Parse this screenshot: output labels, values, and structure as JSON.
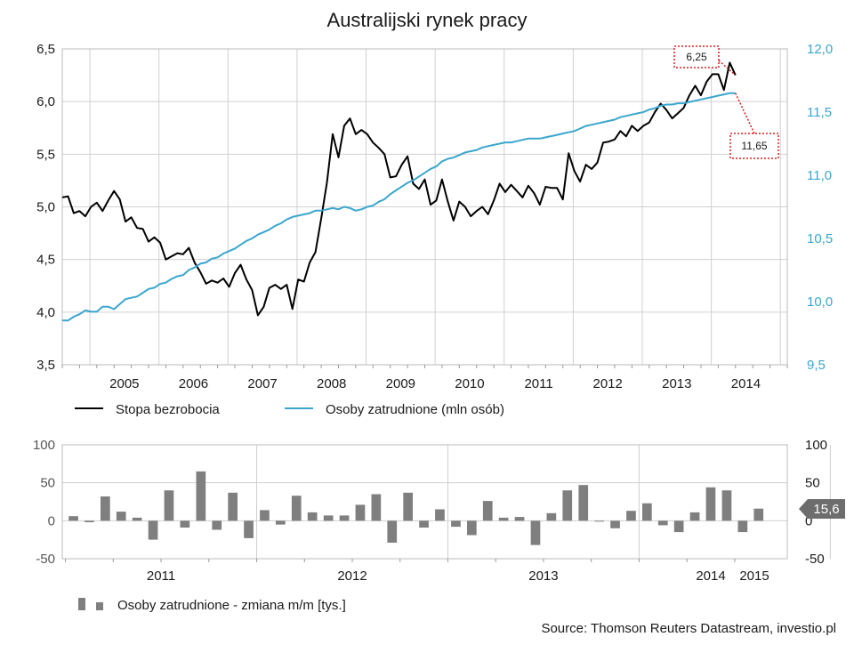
{
  "title": "Australijski rynek pracy",
  "source": "Source: Thomson Reuters Datastream, investio.pl",
  "colors": {
    "unemployment": "#000000",
    "employment": "#3aa6cf",
    "bars": "#7f7f7f",
    "grid": "#d0d0d0"
  },
  "chart_data": [
    {
      "type": "line",
      "x_range": [
        2004.6,
        2015.1
      ],
      "year_labels": [
        "2005",
        "2006",
        "2007",
        "2008",
        "2009",
        "2010",
        "2011",
        "2012",
        "2013",
        "2014"
      ],
      "y_left": {
        "ylim": [
          3.5,
          6.5
        ],
        "ticks": [
          "3,5",
          "4,0",
          "4,5",
          "5,0",
          "5,5",
          "6,0",
          "6,5"
        ]
      },
      "y_right": {
        "ylim": [
          9.5,
          12.0
        ],
        "ticks": [
          "9,5",
          "10,0",
          "10,5",
          "11,0",
          "11,5",
          "12,0"
        ]
      },
      "grid": true,
      "series": [
        {
          "name": "Stopa bezrobocia",
          "axis": "left",
          "x_start": 2004.6,
          "x_step": 0.08333,
          "values": [
            5.09,
            5.1,
            4.94,
            4.96,
            4.91,
            5.0,
            5.04,
            4.96,
            5.06,
            5.15,
            5.07,
            4.86,
            4.9,
            4.8,
            4.79,
            4.67,
            4.71,
            4.66,
            4.5,
            4.53,
            4.56,
            4.55,
            4.61,
            4.47,
            4.38,
            4.27,
            4.3,
            4.28,
            4.32,
            4.24,
            4.37,
            4.45,
            4.31,
            4.21,
            3.97,
            4.05,
            4.23,
            4.26,
            4.22,
            4.26,
            4.03,
            4.31,
            4.29,
            4.47,
            4.57,
            4.89,
            5.23,
            5.69,
            5.47,
            5.77,
            5.84,
            5.69,
            5.73,
            5.69,
            5.61,
            5.56,
            5.5,
            5.28,
            5.29,
            5.4,
            5.48,
            5.22,
            5.17,
            5.26,
            5.02,
            5.06,
            5.26,
            5.05,
            4.87,
            5.05,
            5.0,
            4.91,
            4.96,
            5.0,
            4.93,
            5.06,
            5.22,
            5.14,
            5.21,
            5.15,
            5.09,
            5.2,
            5.13,
            5.02,
            5.19,
            5.18,
            5.18,
            5.07,
            5.51,
            5.34,
            5.24,
            5.4,
            5.36,
            5.42,
            5.61,
            5.62,
            5.64,
            5.72,
            5.67,
            5.77,
            5.72,
            5.77,
            5.8,
            5.9,
            5.98,
            5.92,
            5.84,
            5.89,
            5.94,
            6.06,
            6.15,
            6.06,
            6.19,
            6.26,
            6.26,
            6.11,
            6.37,
            6.25
          ]
        },
        {
          "name": "Osoby zatrudnione (mln osób)",
          "axis": "right",
          "x_start": 2004.6,
          "x_step": 0.08333,
          "values": [
            9.85,
            9.85,
            9.88,
            9.9,
            9.93,
            9.92,
            9.92,
            9.96,
            9.96,
            9.94,
            9.98,
            10.02,
            10.03,
            10.04,
            10.07,
            10.1,
            10.11,
            10.14,
            10.15,
            10.18,
            10.2,
            10.21,
            10.25,
            10.27,
            10.3,
            10.31,
            10.34,
            10.35,
            10.38,
            10.4,
            10.42,
            10.45,
            10.48,
            10.5,
            10.53,
            10.55,
            10.57,
            10.6,
            10.62,
            10.65,
            10.67,
            10.68,
            10.69,
            10.7,
            10.72,
            10.72,
            10.73,
            10.74,
            10.73,
            10.75,
            10.74,
            10.72,
            10.73,
            10.75,
            10.76,
            10.79,
            10.81,
            10.85,
            10.88,
            10.91,
            10.94,
            10.96,
            10.99,
            11.02,
            11.05,
            11.07,
            11.11,
            11.13,
            11.14,
            11.16,
            11.18,
            11.19,
            11.2,
            11.22,
            11.23,
            11.24,
            11.25,
            11.26,
            11.26,
            11.27,
            11.28,
            11.29,
            11.29,
            11.29,
            11.3,
            11.31,
            11.32,
            11.33,
            11.34,
            11.35,
            11.37,
            11.39,
            11.4,
            11.41,
            11.42,
            11.43,
            11.44,
            11.46,
            11.47,
            11.48,
            11.49,
            11.5,
            11.52,
            11.53,
            11.55,
            11.56,
            11.56,
            11.57,
            11.57,
            11.58,
            11.59,
            11.6,
            11.61,
            11.62,
            11.63,
            11.64,
            11.65,
            11.65
          ]
        }
      ],
      "annotations": [
        {
          "text": "6,25",
          "series": "Stopa bezrobocia",
          "value": 6.25
        },
        {
          "text": "11,65",
          "series": "Osoby zatrudnione (mln osób)",
          "value": 11.65
        }
      ],
      "legend": {
        "placement": "bottom-left",
        "items": [
          "Stopa bezrobocia",
          "Osoby zatrudnione (mln osób)"
        ]
      }
    },
    {
      "type": "bar",
      "year_labels": [
        "2011",
        "2012",
        "2013",
        "2014",
        "2015"
      ],
      "year_month_index": [
        0,
        12,
        24,
        36,
        48
      ],
      "ylim": [
        -50,
        100
      ],
      "y_left_ticks": [
        "-50",
        "0",
        "50",
        "100"
      ],
      "y_right_ticks": [
        "-50",
        "0",
        "50",
        "100"
      ],
      "grid": true,
      "series": [
        {
          "name": "Osoby zatrudnione - zmiana m/m [tys.]",
          "values": [
            6,
            -2,
            32,
            12,
            4,
            -25,
            40,
            -9,
            65,
            -12,
            37,
            -23,
            14,
            -5,
            33,
            11,
            7,
            7,
            21,
            35,
            -29,
            37,
            -9,
            15,
            -8,
            -19,
            26,
            4,
            5,
            -32,
            10,
            40,
            47,
            0,
            -10,
            13,
            23,
            -6,
            -15,
            11,
            44,
            40,
            -15,
            16
          ]
        }
      ],
      "annotations": [
        {
          "text": "15,6",
          "value": 15.6
        }
      ],
      "legend": {
        "placement": "bottom-left",
        "items": [
          "Osoby zatrudnione - zmiana m/m [tys.]"
        ]
      }
    }
  ]
}
